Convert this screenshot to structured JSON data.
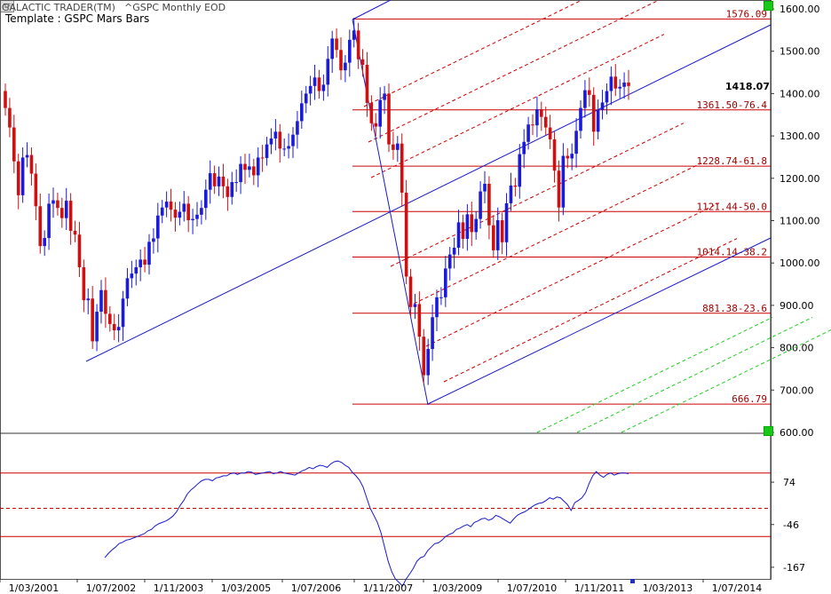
{
  "header": {
    "app_title": "GALACTIC TRADER(TM)",
    "symbol": "^GSPC Monthly EOD",
    "template": "Template : GSPC Mars Bars"
  },
  "buttons": {
    "tf_label": "TF"
  },
  "colors": {
    "up": "#1a1adc",
    "down": "#d01010",
    "fib": "#cc0000",
    "channel": "#1a1acc",
    "green_dash": "#22cc22"
  },
  "chart_data": [
    {
      "type": "candlestick",
      "title": "Template : GSPC Mars Bars",
      "ylim": [
        600,
        1600
      ],
      "y_ticks": [
        "1600.00",
        "1500.00",
        "1400.00",
        "1300.00",
        "1200.00",
        "1100.00",
        "1000.00",
        "900.00",
        "800.00",
        "700.00",
        "600.00"
      ],
      "last_price_label": "1418.07",
      "x_ticks": [
        "1/03/2001",
        "1/07/2002",
        "1/11/2003",
        "1/03/2005",
        "1/07/2006",
        "1/11/2007",
        "1/03/2009",
        "1/07/2010",
        "1/11/2011",
        "1/03/2013",
        "1/07/2014"
      ],
      "fib_levels": [
        {
          "value": 1576.09,
          "label": "1576.09"
        },
        {
          "value": 1361.5,
          "label": "1361.50-76.4"
        },
        {
          "value": 1228.74,
          "label": "1228.74-61.8"
        },
        {
          "value": 1121.44,
          "label": "1121.44-50.0"
        },
        {
          "value": 1014.14,
          "label": "1014.14-38.2"
        },
        {
          "value": 881.38,
          "label": "881.38-23.6"
        },
        {
          "value": 666.79,
          "label": "666.79"
        }
      ],
      "closes": [
        1366,
        1320,
        1240,
        1160,
        1249,
        1255,
        1211,
        1134,
        1040,
        1059,
        1140,
        1148,
        1130,
        1106,
        1147,
        1076,
        1067,
        990,
        912,
        916,
        815,
        885,
        936,
        880,
        856,
        841,
        849,
        916,
        964,
        975,
        990,
        1008,
        996,
        1050,
        1058,
        1112,
        1131,
        1145,
        1126,
        1107,
        1121,
        1140,
        1101,
        1104,
        1114,
        1130,
        1173,
        1212,
        1181,
        1204,
        1181,
        1156,
        1191,
        1191,
        1234,
        1220,
        1228,
        1207,
        1249,
        1248,
        1280,
        1294,
        1310,
        1270,
        1270,
        1276,
        1303,
        1335,
        1377,
        1400,
        1418,
        1438,
        1406,
        1421,
        1482,
        1530,
        1503,
        1455,
        1473,
        1527,
        1549,
        1481,
        1468,
        1378,
        1330,
        1322,
        1385,
        1400,
        1280,
        1267,
        1282,
        1166,
        968,
        896,
        903,
        826,
        735,
        797,
        872,
        919,
        919,
        987,
        1020,
        1036,
        1096,
        1057,
        1115,
        1073,
        1104,
        1169,
        1187,
        1089,
        1030,
        1101,
        1049,
        1141,
        1183,
        1180,
        1257,
        1286,
        1327,
        1325,
        1363,
        1345,
        1320,
        1292,
        1218,
        1131,
        1253,
        1247,
        1258,
        1312,
        1366,
        1408,
        1397,
        1310,
        1362,
        1379,
        1406,
        1440,
        1412,
        1416,
        1426,
        1418
      ],
      "indicator": {
        "y_ticks": [
          "74",
          "-46",
          "-167"
        ],
        "levels": [
          100,
          0,
          -80
        ],
        "series": [
          -140,
          -128,
          -118,
          -110,
          -100,
          -96,
          -90,
          -88,
          -84,
          -80,
          -76,
          -72,
          -64,
          -60,
          -50,
          -44,
          -40,
          -36,
          -30,
          -22,
          -10,
          8,
          22,
          40,
          52,
          60,
          70,
          78,
          82,
          82,
          78,
          86,
          88,
          92,
          92,
          98,
          100,
          96,
          100,
          100,
          104,
          102,
          96,
          98,
          100,
          102,
          104,
          98,
          100,
          104,
          100,
          98,
          96,
          94,
          100,
          106,
          110,
          116,
          112,
          118,
          122,
          120,
          116,
          126,
          132,
          134,
          130,
          122,
          116,
          102,
          92,
          80,
          60,
          30,
          0,
          -20,
          -40,
          -70,
          -110,
          -150,
          -180,
          -200,
          -210,
          -220,
          -200,
          -186,
          -170,
          -150,
          -140,
          -136,
          -120,
          -110,
          -100,
          -98,
          -90,
          -80,
          -74,
          -70,
          -60,
          -56,
          -50,
          -46,
          -52,
          -40,
          -36,
          -30,
          -28,
          -34,
          -30,
          -20,
          -24,
          -30,
          -36,
          -42,
          -30,
          -20,
          -14,
          -10,
          -4,
          4,
          10,
          14,
          16,
          22,
          30,
          26,
          32,
          30,
          20,
          10,
          -6,
          16,
          22,
          30,
          44,
          70,
          92,
          104,
          94,
          88,
          96,
          100,
          94,
          98,
          100,
          100,
          98
        ],
        "label_point": "74"
      }
    }
  ]
}
